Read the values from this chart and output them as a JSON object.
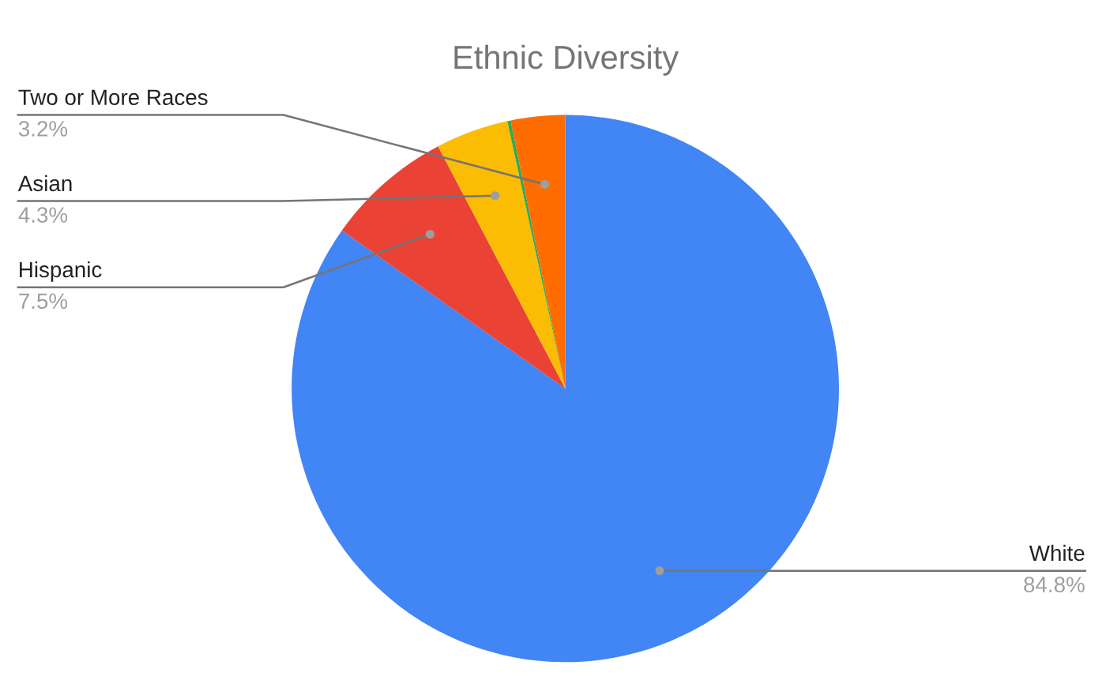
{
  "chart_data": {
    "type": "pie",
    "title": "Ethnic Diversity",
    "categories": [
      "White",
      "Hispanic",
      "Asian",
      null,
      "Two or More Races"
    ],
    "values": [
      84.8,
      7.5,
      4.3,
      0.2,
      3.2
    ],
    "value_labels": [
      "84.8%",
      "7.5%",
      "4.3%",
      null,
      "3.2%"
    ],
    "colors": [
      "#4285f4",
      "#ea4335",
      "#fbbc04",
      "#34a853",
      "#ff6d01"
    ],
    "legend": false
  }
}
